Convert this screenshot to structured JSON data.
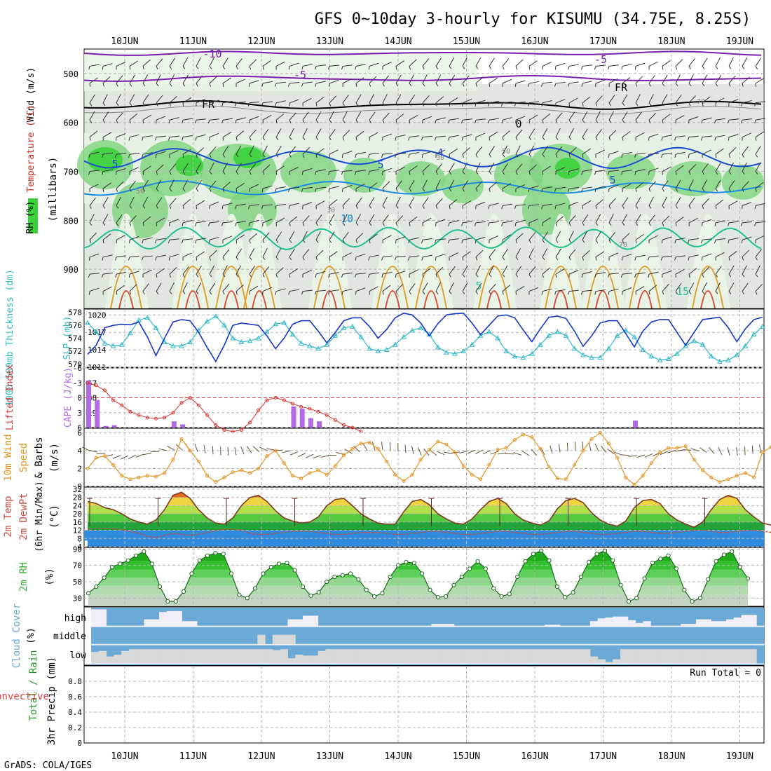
{
  "title": "GFS 0~10day 3-hourly for KISUMU (34.75E, 8.25S)",
  "credit": "GrADS: COLA/IGES",
  "dates": [
    "10JUN",
    "11JUN",
    "12JUN",
    "13JUN",
    "14JUN",
    "15JUN",
    "16JUN",
    "17JUN",
    "18JUN",
    "19JUN"
  ],
  "colors": {
    "grid": "#b4b4b4",
    "rhPale": "#e9f3e6",
    "rhMid": "#c4d3c4",
    "rhBright": "#7ed57e",
    "rhVivid": "#3cd23c",
    "slp": "#1537c8",
    "thick": "#2fb8c8",
    "li": "#d8342c",
    "cape": "#b36ae8",
    "wind": "#e39422",
    "temp": "#7f3b1e",
    "dew": "#c94b3c",
    "rh": "#36b22e",
    "cloud": "#6baad6",
    "cloudClear": "#f2eef8"
  },
  "upper_air": {
    "ylabel_parts": [
      "Wind (m/s)",
      "Temperature (°C)",
      "RH (%)",
      "(millibars)"
    ],
    "pressure_ticks": [
      "500",
      "600",
      "700",
      "800",
      "900"
    ],
    "isotherm_labels": [
      "-10",
      "-5",
      "-5",
      "FR",
      "FR",
      "0",
      "5",
      "4",
      "5",
      "5",
      "10",
      "5",
      "15"
    ],
    "rh_labels": [
      "50",
      "30",
      "30",
      "50",
      "70",
      "70"
    ]
  },
  "panels": {
    "thickness_slp": {
      "left_label": "1000-500mb Thickness (dm)",
      "right_label": "SLP (mb)",
      "left_ticks": [
        "578",
        "576",
        "574",
        "572",
        "570"
      ],
      "right_ticks": [
        "1020",
        "1017",
        "1014",
        "1011"
      ]
    },
    "li_cape": {
      "left_label": "Lifted Index",
      "right_label": "CAPE (J/kg)",
      "left_ticks": [
        "-6",
        "-3",
        "0",
        "3",
        "6"
      ],
      "right_ticks": [
        "57",
        "38",
        "19"
      ]
    },
    "wind": {
      "label_line1": "10m Wind",
      "label_line2": "Speed",
      "label_line3": "& Barbs",
      "unit": "(m/s)",
      "ticks": [
        "6",
        "4",
        "2",
        "0"
      ]
    },
    "temp": {
      "label_line1": "2m Temp",
      "label_line2": "2m DewPt",
      "label_line3": "(6hr Min/Max)",
      "unit": "(°C)",
      "ticks": [
        "32",
        "28",
        "24",
        "20",
        "16",
        "12",
        "8",
        "4"
      ]
    },
    "rh": {
      "label_line1": "2m RH",
      "unit": "(%)",
      "ticks": [
        "90",
        "70",
        "50",
        "30"
      ]
    },
    "cloud": {
      "label_line1": "Cloud Cover",
      "unit": "(%)",
      "levels": [
        "high",
        "middle",
        "low"
      ]
    },
    "precip": {
      "label_line1": "Total / Rain",
      "label_line2": "Convective",
      "label_line3": "3hr Precip (mm)",
      "ticks": [
        "0.8",
        "0.6",
        "0.4",
        "0.2",
        "0"
      ],
      "run_total": "Run Total = 0"
    }
  },
  "chart_data": [
    {
      "type": "line",
      "title": "1000-500mb Thickness / SLP",
      "x_unit": "days from 00Z 09JUN (3-hourly)",
      "x_start": 0.5,
      "x_step": 0.125,
      "series": [
        {
          "name": "SLP (mb)",
          "ylim": [
            1011,
            1021
          ],
          "values": [
            1013.2,
            1014.8,
            1017.8,
            1018.2,
            1018.4,
            1018.3,
            1018.8,
            1016.2,
            1013.0,
            1016.0,
            1018.8,
            1019.2,
            1019.0,
            1017.0,
            1014.4,
            1012.0,
            1014.8,
            1018.2,
            1018.6,
            1018.4,
            1018.2,
            1016.4,
            1014.2,
            1016.0,
            1018.4,
            1019.0,
            1019.0,
            1017.2,
            1015.2,
            1017.0,
            1019.0,
            1019.5,
            1019.5,
            1018.0,
            1016.0,
            1017.5,
            1019.5,
            1020.3,
            1020.0,
            1018.6,
            1016.4,
            1018.5,
            1020.0,
            1020.2,
            1020.3,
            1018.6,
            1016.6,
            1018.2,
            1019.8,
            1020.0,
            1019.5,
            1017.4,
            1015.4,
            1017.6,
            1019.6,
            1019.8,
            1019.4,
            1017.2,
            1014.6,
            1016.4,
            1018.6,
            1019.0,
            1019.0,
            1016.8,
            1014.5,
            1017.2,
            1018.8,
            1019.2,
            1019.2,
            1017.0,
            1014.8,
            1017.0,
            1019.2,
            1019.4,
            1019.6,
            1017.8,
            1015.4,
            1017.6,
            1019.2,
            1019.6
          ]
        },
        {
          "name": "1000-500mb Thickness (dm)",
          "ylim": [
            569.5,
            578.5
          ],
          "values": [
            576.4,
            575.0,
            573.2,
            572.8,
            573.0,
            574.8,
            576.8,
            577.2,
            575.6,
            573.4,
            572.8,
            572.8,
            573.4,
            575.2,
            576.6,
            577.4,
            576.0,
            574.0,
            573.4,
            573.6,
            574.0,
            575.0,
            576.2,
            576.4,
            574.6,
            573.2,
            572.8,
            572.4,
            573.0,
            574.4,
            575.6,
            575.8,
            574.2,
            572.4,
            572.0,
            572.2,
            573.0,
            574.2,
            575.2,
            575.6,
            574.6,
            572.6,
            571.8,
            571.6,
            572.0,
            573.0,
            574.4,
            575.0,
            574.0,
            572.0,
            571.2,
            571.0,
            571.6,
            573.0,
            574.4,
            575.0,
            574.4,
            572.4,
            571.4,
            571.0,
            571.0,
            572.4,
            574.4,
            575.2,
            574.2,
            572.2,
            571.2,
            570.6,
            570.8,
            571.6,
            572.8,
            573.6,
            573.0,
            571.2,
            570.4,
            570.6,
            571.4,
            572.8,
            574.6,
            575.8
          ]
        }
      ]
    },
    {
      "type": "bar",
      "title": "Lifted Index / CAPE",
      "x_start": 0.5,
      "x_step": 0.125,
      "cape_values": [
        60,
        35,
        2,
        3,
        0,
        0,
        0,
        0,
        0,
        0,
        8,
        4,
        0,
        0,
        0,
        0,
        0,
        0,
        0,
        0,
        0,
        0,
        0,
        0,
        27,
        24,
        12,
        8,
        0,
        0,
        0,
        0,
        0,
        0,
        0,
        0,
        0,
        0,
        0,
        0,
        0,
        0,
        0,
        0,
        0,
        0,
        0,
        0,
        0,
        0,
        0,
        0,
        0,
        0,
        0,
        0,
        0,
        0,
        0,
        0,
        0,
        0,
        0,
        0,
        9,
        0,
        0,
        0,
        0,
        0,
        0,
        0,
        0,
        0,
        0,
        0,
        0,
        0,
        0,
        0,
        0,
        0,
        0,
        0,
        0,
        0,
        0,
        0,
        0,
        0
      ],
      "lifted_index": [
        -3.0,
        -2.5,
        -1.5,
        0.5,
        1.5,
        2.8,
        3.5,
        4.0,
        4.2,
        4.0,
        3.0,
        1.0,
        0.0,
        1.5,
        3.5,
        5.5,
        6.5,
        6.8,
        6.5,
        5.0,
        2.5,
        0.5,
        0.0,
        0.5,
        1.2,
        1.8,
        2.2,
        2.8,
        3.5,
        4.5,
        5.5,
        6.0,
        6.8
      ],
      "li_ylim": [
        6,
        -6
      ],
      "cape_ylim": [
        0,
        76
      ]
    },
    {
      "type": "line",
      "title": "10m Wind Speed",
      "x_start": 0.5,
      "x_step": 0.125,
      "ylim": [
        0,
        6.5
      ],
      "values": [
        2.0,
        3.2,
        3.4,
        2.4,
        1.2,
        0.8,
        1.0,
        1.2,
        1.1,
        1.5,
        3.0,
        5.3,
        4.0,
        2.8,
        1.2,
        0.5,
        1.0,
        1.6,
        1.8,
        1.5,
        2.0,
        3.4,
        4.0,
        2.6,
        1.2,
        0.9,
        1.5,
        1.8,
        1.3,
        2.3,
        3.5,
        4.2,
        4.8,
        4.9,
        4.2,
        2.8,
        1.3,
        0.6,
        1.3,
        3.0,
        4.1,
        5.0,
        4.7,
        3.8,
        2.3,
        1.3,
        0.8,
        2.4,
        4.1,
        4.3,
        5.2,
        5.8,
        5.5,
        4.2,
        2.2,
        0.9,
        0.8,
        2.4,
        4.0,
        5.3,
        6.0,
        4.8,
        3.2,
        1.0,
        0.2,
        1.2,
        2.6,
        3.8,
        4.3,
        4.3,
        4.5,
        3.0,
        1.8,
        1.0,
        0.5,
        0.8,
        1.2,
        1.5,
        1.0,
        3.8,
        4.4,
        4.3,
        3.1,
        1.8,
        0.7,
        0.5,
        0.8,
        0.9,
        1.0
      ]
    },
    {
      "type": "area",
      "title": "2m Temp / 2m DewPt",
      "x_start": 0.5,
      "x_step": 0.125,
      "ylim": [
        4,
        33
      ],
      "temp": [
        26.0,
        25.0,
        23.0,
        22.0,
        20.0,
        17.5,
        16.0,
        15.0,
        17.0,
        22.0,
        29.0,
        30.5,
        27.5,
        22.0,
        18.0,
        15.5,
        15.0,
        18.0,
        24.0,
        28.0,
        29.0,
        26.0,
        21.5,
        18.0,
        16.5,
        15.5,
        16.0,
        18.5,
        24.0,
        27.0,
        27.5,
        24.0,
        20.0,
        17.5,
        15.5,
        15.0,
        15.0,
        21.0,
        26.0,
        27.0,
        24.5,
        20.0,
        17.5,
        15.5,
        15.0,
        17.5,
        22.0,
        26.0,
        27.5,
        25.0,
        20.0,
        17.0,
        15.5,
        14.5,
        16.5,
        22.5,
        26.5,
        27.5,
        25.5,
        20.5,
        17.0,
        15.0,
        14.0,
        16.5,
        23.0,
        26.5,
        27.0,
        25.0,
        20.0,
        17.0,
        15.0,
        13.5,
        16.0,
        22.0,
        27.0,
        29.0,
        27.5,
        22.0,
        18.5,
        15.5,
        14.5,
        16.0,
        22.0,
        28.0,
        30.0,
        27.5,
        21.5,
        17.5,
        15.5,
        14.5,
        19.5
      ],
      "dewpoint": [
        12.5,
        12.8,
        13.0,
        12.8,
        12.2,
        11.5,
        10.5,
        9.0,
        8.5,
        9.5,
        10.5,
        10.0,
        9.5,
        10.0,
        11.0,
        11.8,
        12.5,
        12.5,
        12.0,
        10.5,
        10.0,
        10.0,
        10.5,
        11.0,
        11.5,
        11.5,
        11.5,
        11.0,
        10.5,
        10.0,
        10.0,
        10.5,
        11.0,
        11.0,
        11.0,
        10.5,
        10.0,
        10.0,
        10.5,
        11.0,
        11.5,
        11.5,
        11.0,
        10.5,
        10.0,
        10.0,
        10.5,
        11.0,
        11.5,
        11.5,
        11.0,
        10.5,
        10.0,
        10.0,
        10.5,
        11.0,
        11.5,
        11.5,
        11.0,
        10.5,
        10.0,
        10.0,
        10.5,
        11.0,
        11.5,
        11.5,
        11.0,
        10.5,
        10.5,
        11.0,
        11.5,
        12.0,
        12.0,
        11.5,
        11.0,
        11.0,
        11.5,
        12.0,
        12.0,
        11.5,
        11.0,
        11.0,
        11.5,
        12.0,
        12.0,
        11.5,
        11.0,
        11.0,
        11.5,
        12.0
      ]
    },
    {
      "type": "area",
      "title": "2m RH",
      "x_start": 0.5,
      "x_step": 0.125,
      "ylim": [
        20,
        92
      ],
      "values": [
        36.0,
        44.0,
        55.0,
        68.0,
        72.0,
        76.0,
        82.0,
        87.0,
        72.0,
        44.0,
        26.0,
        26.0,
        38.0,
        60.0,
        76.0,
        82.0,
        85.0,
        84.0,
        60.0,
        34.0,
        30.0,
        42.0,
        60.0,
        68.0,
        72.0,
        73.0,
        64.0,
        44.0,
        33.0,
        37.0,
        50.0,
        56.0,
        58.0,
        60.0,
        53.0,
        40.0,
        32.0,
        36.0,
        56.0,
        70.0,
        74.0,
        73.0,
        60.0,
        40.0,
        31.0,
        32.0,
        46.0,
        56.0,
        66.0,
        75.0,
        66.0,
        42.0,
        32.0,
        35.0,
        56.0,
        75.0,
        84.0,
        88.0,
        76.0,
        44.0,
        31.0,
        37.0,
        56.0,
        74.0,
        84.0,
        88.0,
        76.0,
        46.0,
        26.0,
        30.0,
        54.0,
        73.0,
        78.0,
        82.0,
        66.0,
        40.0,
        26.0,
        30.0,
        53.0,
        75.0,
        83.0,
        87.0,
        68.0,
        54.0
      ]
    },
    {
      "type": "bar",
      "title": "Cloud Cover (%)",
      "note": "cloud-free fraction by 3hr step (0-1)",
      "high_clear": [
        0.05,
        0.05,
        0.95,
        0.95,
        0.95,
        0.95,
        0.95,
        0.6,
        0.6,
        0.2,
        0.15,
        0.15,
        0.7,
        0.7,
        0.95,
        0.95,
        0.95,
        0.95,
        0.95,
        0.95,
        0.95,
        0.95,
        0.95,
        0.95,
        0.95,
        0.95,
        0.6,
        0.6,
        0.4,
        0.4,
        0.95,
        0.95,
        0.95,
        0.95,
        0.95,
        0.95,
        0.95,
        0.95,
        0.95,
        0.95,
        0.95,
        0.95,
        0.95,
        0.95,
        0.95,
        0.85,
        0.85,
        0.85,
        0.95,
        0.95,
        0.95,
        0.95,
        0.95,
        0.95,
        0.95,
        0.95,
        0.95,
        0.95,
        0.95,
        0.95,
        0.9,
        0.9,
        0.95,
        0.95,
        0.95,
        0.95,
        0.7,
        0.55,
        0.5,
        0.45,
        0.45,
        0.65,
        0.8,
        0.7,
        0.95,
        0.95,
        0.95,
        0.95,
        0.85,
        0.85,
        0.6,
        0.6,
        0.7,
        0.7,
        0.6,
        0.5,
        0.35,
        0.35,
        0.95
      ],
      "mid_clear": [
        0.95,
        0.95,
        0.95,
        0.95,
        0.95,
        0.95,
        0.95,
        0.95,
        0.95,
        0.95,
        0.95,
        0.95,
        0.95,
        0.95,
        0.95,
        0.95,
        0.95,
        0.95,
        0.95,
        0.95,
        0.95,
        0.95,
        0.45,
        0.95,
        0.45,
        0.45,
        0.45,
        0.95,
        0.95,
        0.95,
        0.95,
        0.95,
        0.95,
        0.95,
        0.95,
        0.95,
        0.95,
        0.95,
        0.95,
        0.95,
        0.95,
        0.95,
        0.95,
        0.95,
        0.95,
        0.95,
        0.95,
        0.95,
        0.95,
        0.95,
        0.95,
        0.95,
        0.95,
        0.95,
        0.95,
        0.95,
        0.95,
        0.95,
        0.95,
        0.95,
        0.95,
        0.95,
        0.95,
        0.95,
        0.95,
        0.95,
        0.95,
        0.95,
        0.95,
        0.95,
        0.95,
        0.95,
        0.95,
        0.95,
        0.95,
        0.95,
        0.95,
        0.95,
        0.95,
        0.95,
        0.95,
        0.95,
        0.95,
        0.95,
        0.95,
        0.95,
        0.95,
        0.95,
        0.95
      ],
      "low_clear": [
        0.35,
        0.3,
        0.6,
        0.5,
        0.3,
        0.2,
        0.2,
        0.2,
        0.2,
        0.2,
        0.2,
        0.2,
        0.2,
        0.2,
        0.2,
        0.2,
        0.2,
        0.2,
        0.2,
        0.2,
        0.2,
        0.2,
        0.2,
        0.2,
        0.25,
        0.2,
        0.7,
        0.5,
        0.55,
        0.55,
        0.3,
        0.2,
        0.2,
        0.2,
        0.2,
        0.2,
        0.2,
        0.2,
        0.2,
        0.2,
        0.2,
        0.2,
        0.2,
        0.2,
        0.2,
        0.2,
        0.2,
        0.2,
        0.2,
        0.2,
        0.2,
        0.2,
        0.2,
        0.2,
        0.2,
        0.2,
        0.2,
        0.2,
        0.2,
        0.2,
        0.2,
        0.2,
        0.2,
        0.2,
        0.2,
        0.2,
        0.6,
        0.75,
        0.9,
        0.75,
        0.2,
        0.2,
        0.2,
        0.2,
        0.2,
        0.2,
        0.2,
        0.2,
        0.2,
        0.2,
        0.2,
        0.2,
        0.2,
        0.2,
        0.2,
        0.2,
        0.2,
        0.2
      ]
    },
    {
      "type": "bar",
      "title": "3hr Precip (mm)",
      "ylim": [
        0,
        1
      ],
      "values": [],
      "run_total": 0
    }
  ]
}
